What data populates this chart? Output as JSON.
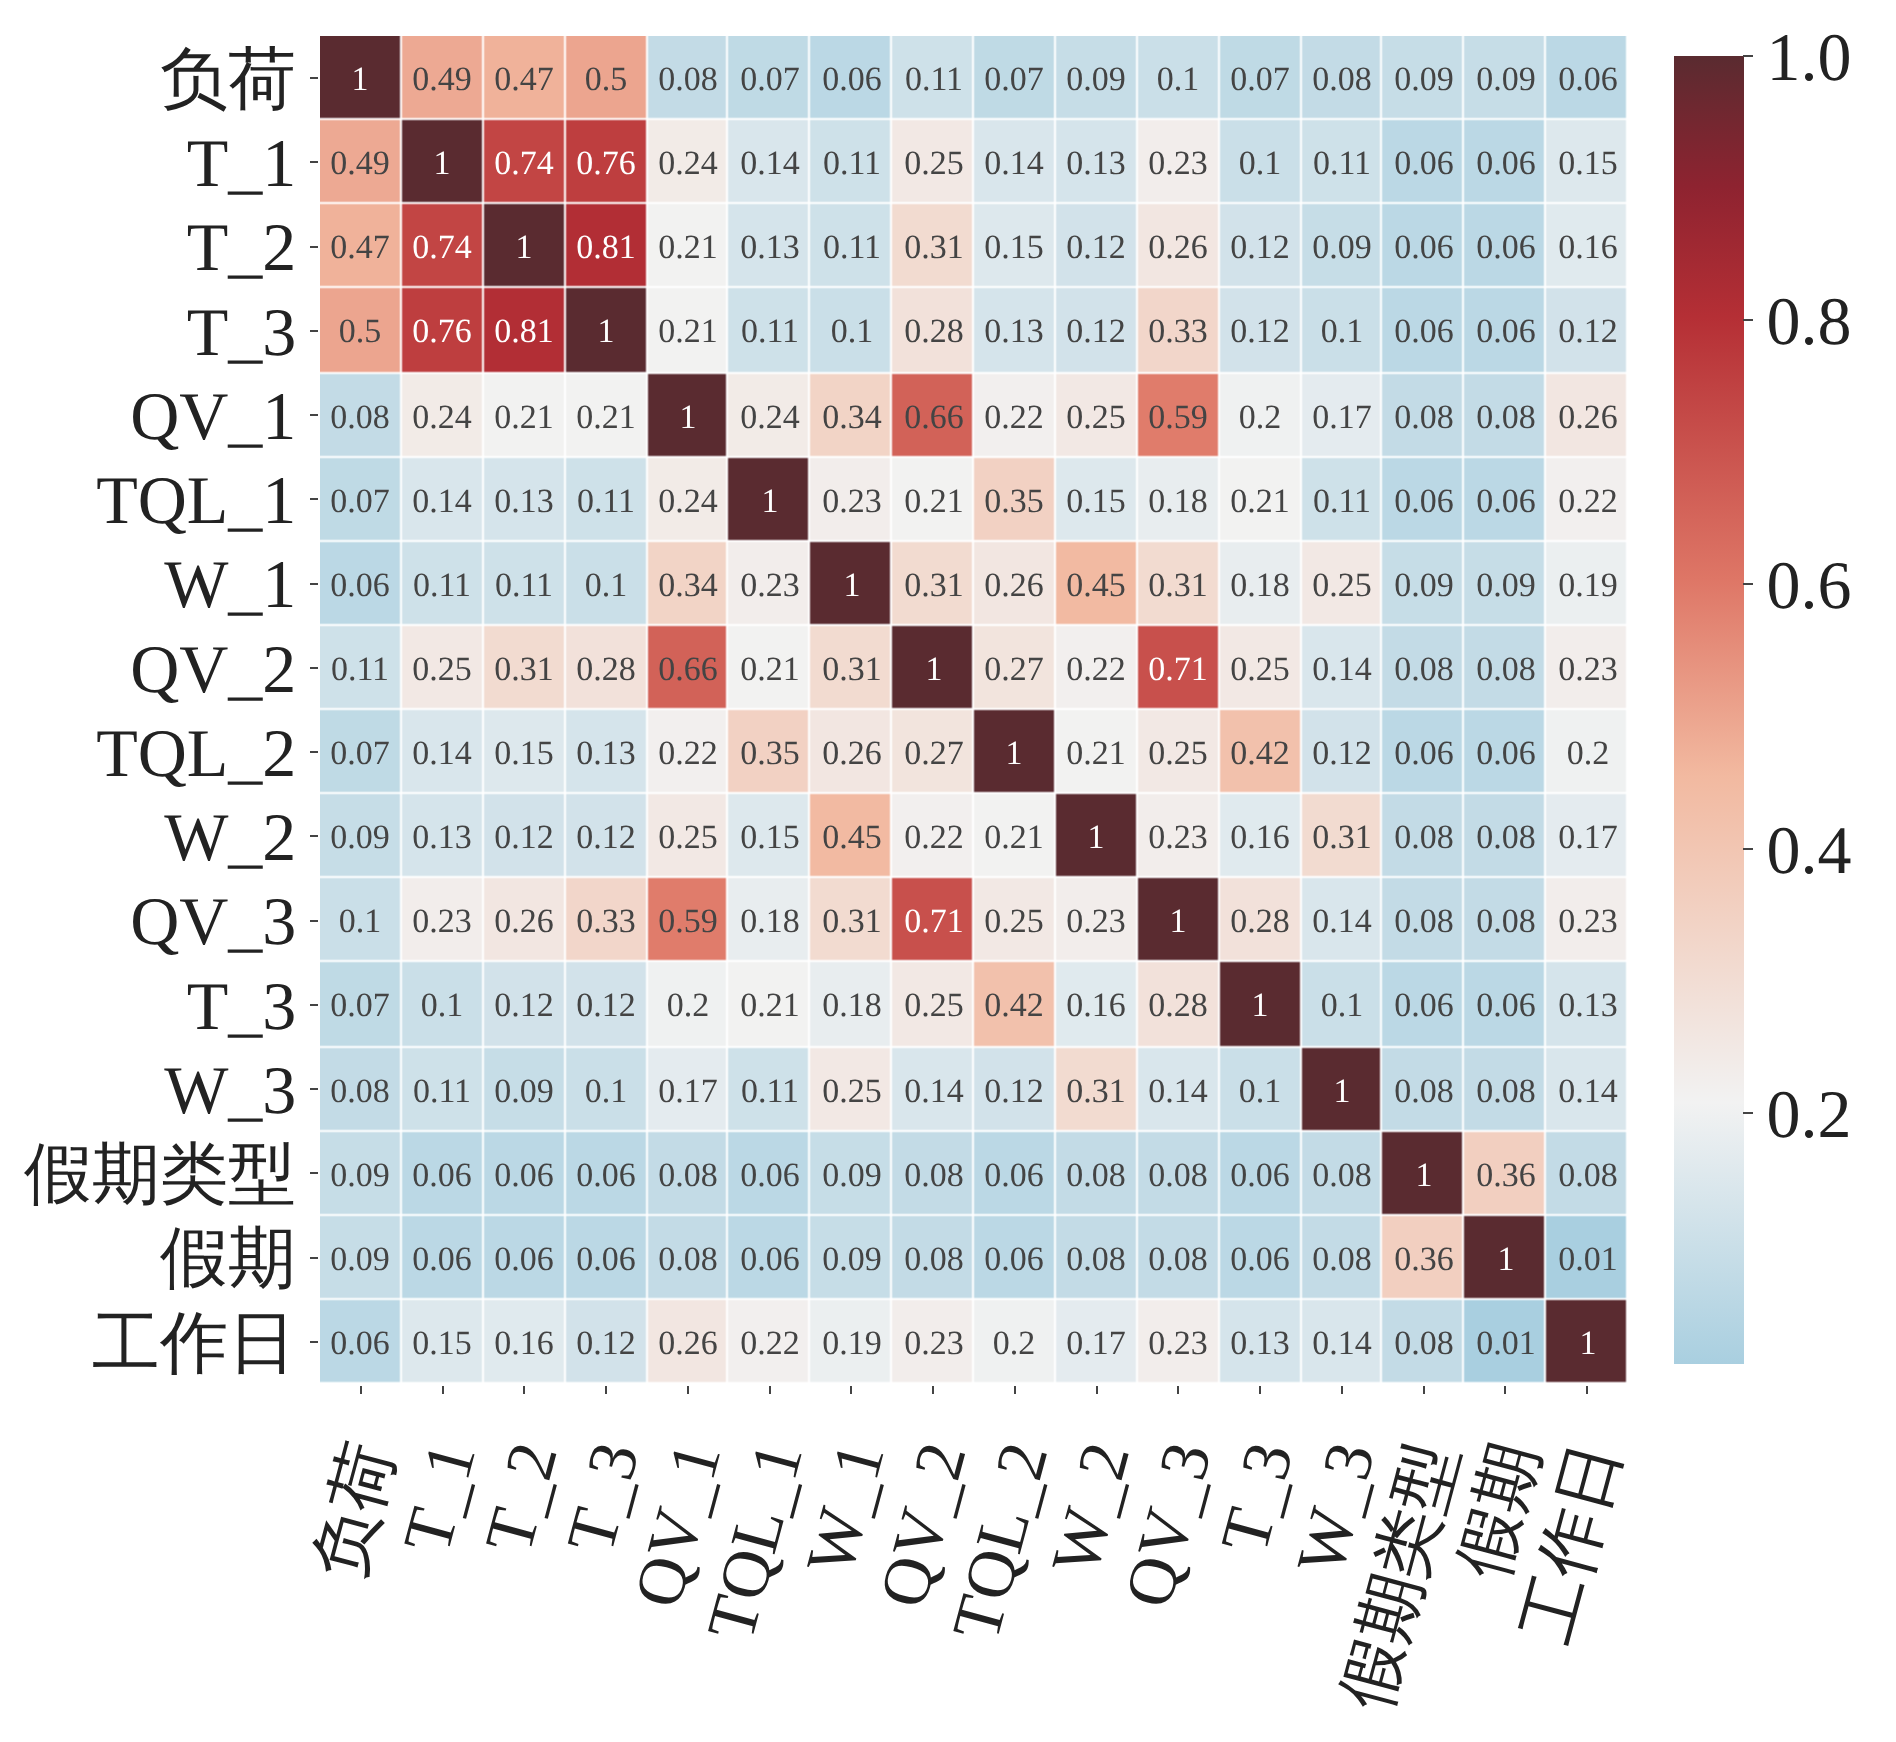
{
  "chart_data": {
    "type": "heatmap",
    "categories": [
      "负荷",
      "T_1",
      "T_2",
      "T_3",
      "QV_1",
      "TQL_1",
      "W_1",
      "QV_2",
      "TQL_2",
      "W_2",
      "QV_3",
      "T_3",
      "W_3",
      "假期类型",
      "假期",
      "工作日"
    ],
    "y_categories": [
      "负荷",
      "T_1",
      "T_2",
      "T_3",
      "QV_1",
      "TQL_1",
      "W_1",
      "QV_2",
      "TQL_2",
      "W_2",
      "QV_3",
      "T_3",
      "W_3",
      "假期类型",
      "假期",
      "工作日"
    ],
    "cells": [
      [
        1,
        0.49,
        0.47,
        0.5,
        0.08,
        0.07,
        0.06,
        0.11,
        0.07,
        0.09,
        0.1,
        0.07,
        0.08,
        0.09,
        0.09,
        0.06
      ],
      [
        0.49,
        1,
        0.74,
        0.76,
        0.24,
        0.14,
        0.11,
        0.25,
        0.14,
        0.13,
        0.23,
        0.1,
        0.11,
        0.06,
        0.06,
        0.15
      ],
      [
        0.47,
        0.74,
        1,
        0.81,
        0.21,
        0.13,
        0.11,
        0.31,
        0.15,
        0.12,
        0.26,
        0.12,
        0.09,
        0.06,
        0.06,
        0.16
      ],
      [
        0.5,
        0.76,
        0.81,
        1,
        0.21,
        0.11,
        0.1,
        0.28,
        0.13,
        0.12,
        0.33,
        0.12,
        0.1,
        0.06,
        0.06,
        0.12
      ],
      [
        0.08,
        0.24,
        0.21,
        0.21,
        1,
        0.24,
        0.34,
        0.66,
        0.22,
        0.25,
        0.59,
        0.2,
        0.17,
        0.08,
        0.08,
        0.26
      ],
      [
        0.07,
        0.14,
        0.13,
        0.11,
        0.24,
        1,
        0.23,
        0.21,
        0.35,
        0.15,
        0.18,
        0.21,
        0.11,
        0.06,
        0.06,
        0.22
      ],
      [
        0.06,
        0.11,
        0.11,
        0.1,
        0.34,
        0.23,
        1,
        0.31,
        0.26,
        0.45,
        0.31,
        0.18,
        0.25,
        0.09,
        0.09,
        0.19
      ],
      [
        0.11,
        0.25,
        0.31,
        0.28,
        0.66,
        0.21,
        0.31,
        1,
        0.27,
        0.22,
        0.71,
        0.25,
        0.14,
        0.08,
        0.08,
        0.23
      ],
      [
        0.07,
        0.14,
        0.15,
        0.13,
        0.22,
        0.35,
        0.26,
        0.27,
        1,
        0.21,
        0.25,
        0.42,
        0.12,
        0.06,
        0.06,
        0.2
      ],
      [
        0.09,
        0.13,
        0.12,
        0.12,
        0.25,
        0.15,
        0.45,
        0.22,
        0.21,
        1,
        0.23,
        0.16,
        0.31,
        0.08,
        0.08,
        0.17
      ],
      [
        0.1,
        0.23,
        0.26,
        0.33,
        0.59,
        0.18,
        0.31,
        0.71,
        0.25,
        0.23,
        1,
        0.28,
        0.14,
        0.08,
        0.08,
        0.23
      ],
      [
        0.07,
        0.1,
        0.12,
        0.12,
        0.2,
        0.21,
        0.18,
        0.25,
        0.42,
        0.16,
        0.28,
        1,
        0.1,
        0.06,
        0.06,
        0.13
      ],
      [
        0.08,
        0.11,
        0.09,
        0.1,
        0.17,
        0.11,
        0.25,
        0.14,
        0.12,
        0.31,
        0.14,
        0.1,
        1,
        0.08,
        0.08,
        0.14
      ],
      [
        0.09,
        0.06,
        0.06,
        0.06,
        0.08,
        0.06,
        0.09,
        0.08,
        0.06,
        0.08,
        0.08,
        0.06,
        0.08,
        1,
        0.36,
        0.08
      ],
      [
        0.09,
        0.06,
        0.06,
        0.06,
        0.08,
        0.06,
        0.09,
        0.08,
        0.06,
        0.08,
        0.08,
        0.06,
        0.08,
        0.36,
        1,
        0.01
      ],
      [
        0.06,
        0.15,
        0.16,
        0.12,
        0.26,
        0.22,
        0.19,
        0.23,
        0.2,
        0.17,
        0.23,
        0.13,
        0.14,
        0.08,
        0.01,
        1
      ]
    ],
    "clim": [
      0.01,
      1.0
    ],
    "cticks": [
      0.2,
      0.4,
      0.6,
      0.8,
      {
        "value": 1.0,
        "label": "1.0"
      }
    ],
    "data_labels": true
  }
}
